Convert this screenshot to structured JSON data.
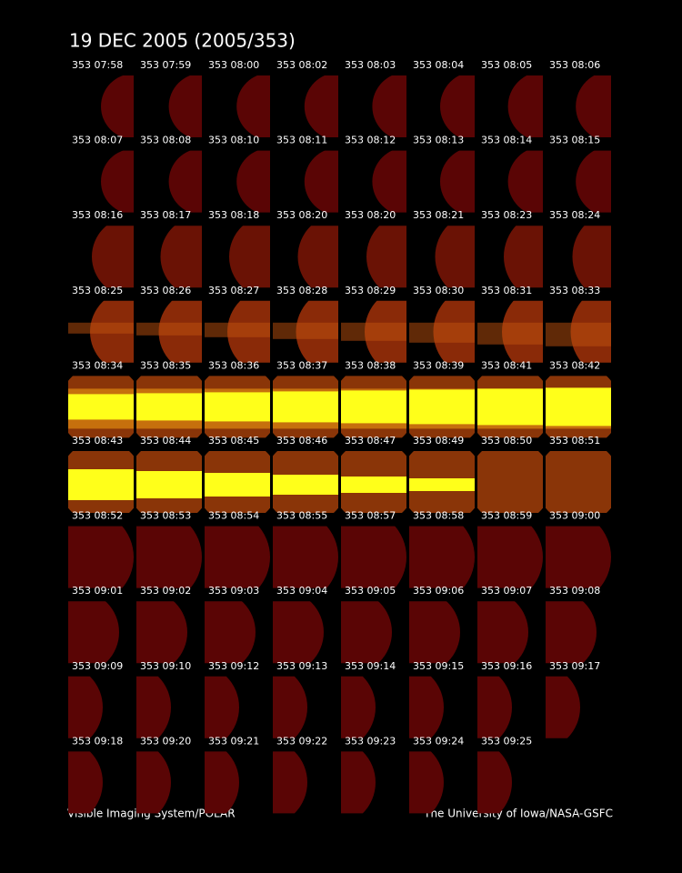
{
  "header": {
    "title": "19 DEC 2005  (2005/353)"
  },
  "frames": [
    [
      "353 07:58",
      "353 07:59",
      "353 08:00",
      "353 08:02",
      "353 08:03",
      "353 08:04",
      "353 08:05",
      "353 08:06"
    ],
    [
      "353 08:07",
      "353 08:08",
      "353 08:10",
      "353 08:11",
      "353 08:12",
      "353 08:13",
      "353 08:14",
      "353 08:15"
    ],
    [
      "353 08:16",
      "353 08:17",
      "353 08:18",
      "353 08:20",
      "353 08:20",
      "353 08:21",
      "353 08:23",
      "353 08:24"
    ],
    [
      "353 08:25",
      "353 08:26",
      "353 08:27",
      "353 08:28",
      "353 08:29",
      "353 08:30",
      "353 08:31",
      "353 08:33"
    ],
    [
      "353 08:34",
      "353 08:35",
      "353 08:36",
      "353 08:37",
      "353 08:38",
      "353 08:39",
      "353 08:41",
      "353 08:42"
    ],
    [
      "353 08:43",
      "353 08:44",
      "353 08:45",
      "353 08:46",
      "353 08:47",
      "353 08:49",
      "353 08:50",
      "353 08:51"
    ],
    [
      "353 08:52",
      "353 08:53",
      "353 08:54",
      "353 08:55",
      "353 08:57",
      "353 08:58",
      "353 08:59",
      "353 09:00"
    ],
    [
      "353 09:01",
      "353 09:02",
      "353 09:03",
      "353 09:04",
      "353 09:05",
      "353 09:06",
      "353 09:07",
      "353 09:08"
    ],
    [
      "353 09:09",
      "353 09:10",
      "353 09:12",
      "353 09:13",
      "353 09:14",
      "353 09:15",
      "353 09:16",
      "353 09:17"
    ],
    [
      "353 09:18",
      "353 09:20",
      "353 09:21",
      "353 09:22",
      "353 09:23",
      "353 09:24",
      "353 09:25"
    ]
  ],
  "footer": {
    "left": "Visible Imaging System/POLAR",
    "right": "The University of Iowa/NASA-GSFC"
  }
}
